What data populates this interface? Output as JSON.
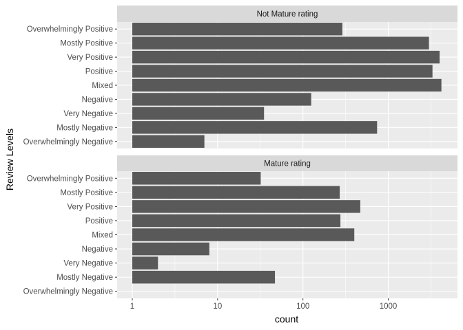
{
  "chart_data": {
    "type": "bar",
    "orientation": "horizontal",
    "xlabel": "count",
    "ylabel": "Review Levels",
    "x_scale": "log10",
    "x_ticks": [
      1,
      10,
      100,
      1000
    ],
    "x_tick_labels": [
      "1",
      "10",
      "100",
      "1000"
    ],
    "xlim": [
      0.78,
      6000
    ],
    "grid": true,
    "categories": [
      "Overwhelmingly Positive",
      "Mostly Positive",
      "Very Positive",
      "Positive",
      "Mixed",
      "Negative",
      "Very Negative",
      "Mostly Negative",
      "Overwhelmingly Negative"
    ],
    "panels": [
      {
        "strip": "Not Mature rating",
        "values": [
          290,
          3000,
          4000,
          3300,
          4200,
          125,
          35,
          740,
          7
        ]
      },
      {
        "strip": "Mature rating",
        "values": [
          32,
          270,
          470,
          275,
          400,
          8,
          2,
          47,
          null
        ]
      }
    ],
    "colors": {
      "bar": "#595959",
      "panel_bg": "#ebebeb",
      "strip_bg": "#d9d9d9",
      "grid": "#ffffff"
    }
  }
}
